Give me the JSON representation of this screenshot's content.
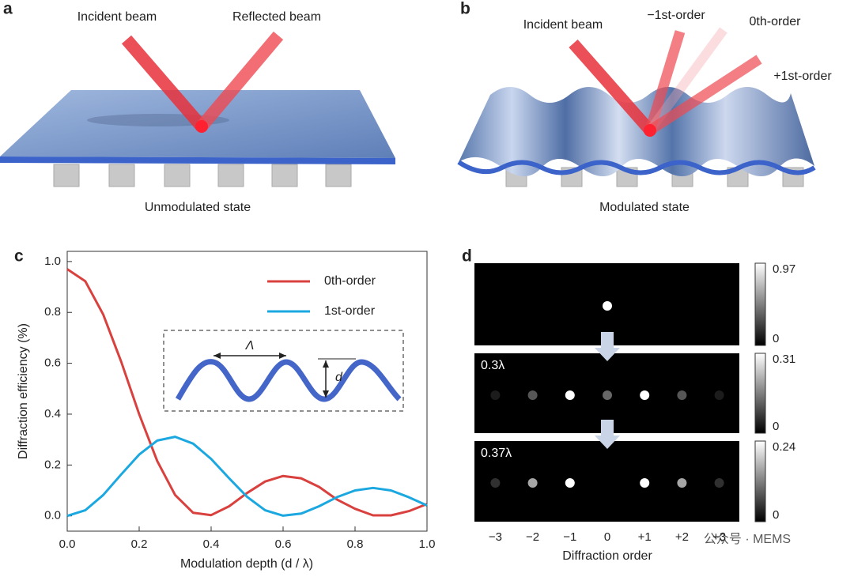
{
  "panel_a": {
    "label": "a",
    "incident": "Incident beam",
    "reflected": "Reflected beam",
    "caption": "Unmodulated state"
  },
  "panel_b": {
    "label": "b",
    "incident": "Incident beam",
    "minus_first": "−1st-order",
    "zeroth": "0th-order",
    "plus_first": "+1st-order",
    "caption": "Modulated state"
  },
  "chart_data": {
    "type": "line",
    "panel_label": "c",
    "xlabel": "Modulation depth (d / λ)",
    "ylabel": "Diffraction efficiency (%)",
    "x": [
      0,
      0.05,
      0.1,
      0.15,
      0.2,
      0.25,
      0.3,
      0.35,
      0.4,
      0.45,
      0.5,
      0.55,
      0.6,
      0.65,
      0.7,
      0.75,
      0.8,
      0.85,
      0.9,
      0.95,
      1.0
    ],
    "series": [
      {
        "name": "0th-order",
        "color": "#d9413f",
        "values": [
          0.97,
          0.923,
          0.792,
          0.606,
          0.4,
          0.216,
          0.082,
          0.012,
          0.003,
          0.038,
          0.09,
          0.135,
          0.157,
          0.148,
          0.114,
          0.064,
          0.028,
          0.002,
          0.002,
          0.019,
          0.047
        ]
      },
      {
        "name": "1st-order",
        "color": "#1ba8e0",
        "values": [
          0,
          0.022,
          0.082,
          0.163,
          0.241,
          0.296,
          0.311,
          0.284,
          0.224,
          0.148,
          0.075,
          0.022,
          0.001,
          0.009,
          0.038,
          0.074,
          0.1,
          0.11,
          0.1,
          0.073,
          0.041
        ]
      }
    ],
    "xlim": [
      0,
      1
    ],
    "ylim": [
      -0.06,
      1.04
    ],
    "xticks": [
      {
        "value": 0,
        "label": "0.0"
      },
      {
        "value": 0.2,
        "label": "0.2"
      },
      {
        "value": 0.4,
        "label": "0.4"
      },
      {
        "value": 0.6,
        "label": "0.6"
      },
      {
        "value": 0.8,
        "label": "0.8"
      },
      {
        "value": 1,
        "label": "1.0"
      }
    ],
    "yticks": [
      {
        "value": 0,
        "label": "0.0"
      },
      {
        "value": 0.2,
        "label": "0.2"
      },
      {
        "value": 0.4,
        "label": "0.4"
      },
      {
        "value": 0.6,
        "label": "0.6"
      },
      {
        "value": 0.8,
        "label": "0.8"
      },
      {
        "value": 1,
        "label": "1.0"
      }
    ],
    "legend": "upper right",
    "inset": {
      "period": "Λ",
      "depth": "d"
    }
  },
  "panel_d": {
    "label": "d",
    "xlabel": "Diffraction order",
    "orders": [
      {
        "value": -3,
        "label": "−3"
      },
      {
        "value": -2,
        "label": "−2"
      },
      {
        "value": -1,
        "label": "−1"
      },
      0,
      {
        "value": 1,
        "label": "+1"
      },
      {
        "value": 2,
        "label": "+2"
      },
      {
        "value": 3,
        "label": "+3"
      }
    ],
    "rows": [
      {
        "colorbar_max": 0.97,
        "colorbar_min": 0,
        "spots": [
          0,
          0,
          0,
          0.97,
          0,
          0,
          0
        ]
      },
      {
        "depth": "0.3λ",
        "colorbar_max": 0.31,
        "colorbar_min": 0,
        "spots": [
          0.02,
          0.08,
          0.31,
          0.1,
          0.31,
          0.08,
          0.02
        ]
      },
      {
        "depth": "0.37λ",
        "colorbar_max": 0.24,
        "colorbar_min": 0,
        "spots": [
          0.03,
          0.14,
          0.24,
          0,
          0.24,
          0.14,
          0.03
        ]
      }
    ]
  },
  "watermark": "公众号 · MEMS"
}
